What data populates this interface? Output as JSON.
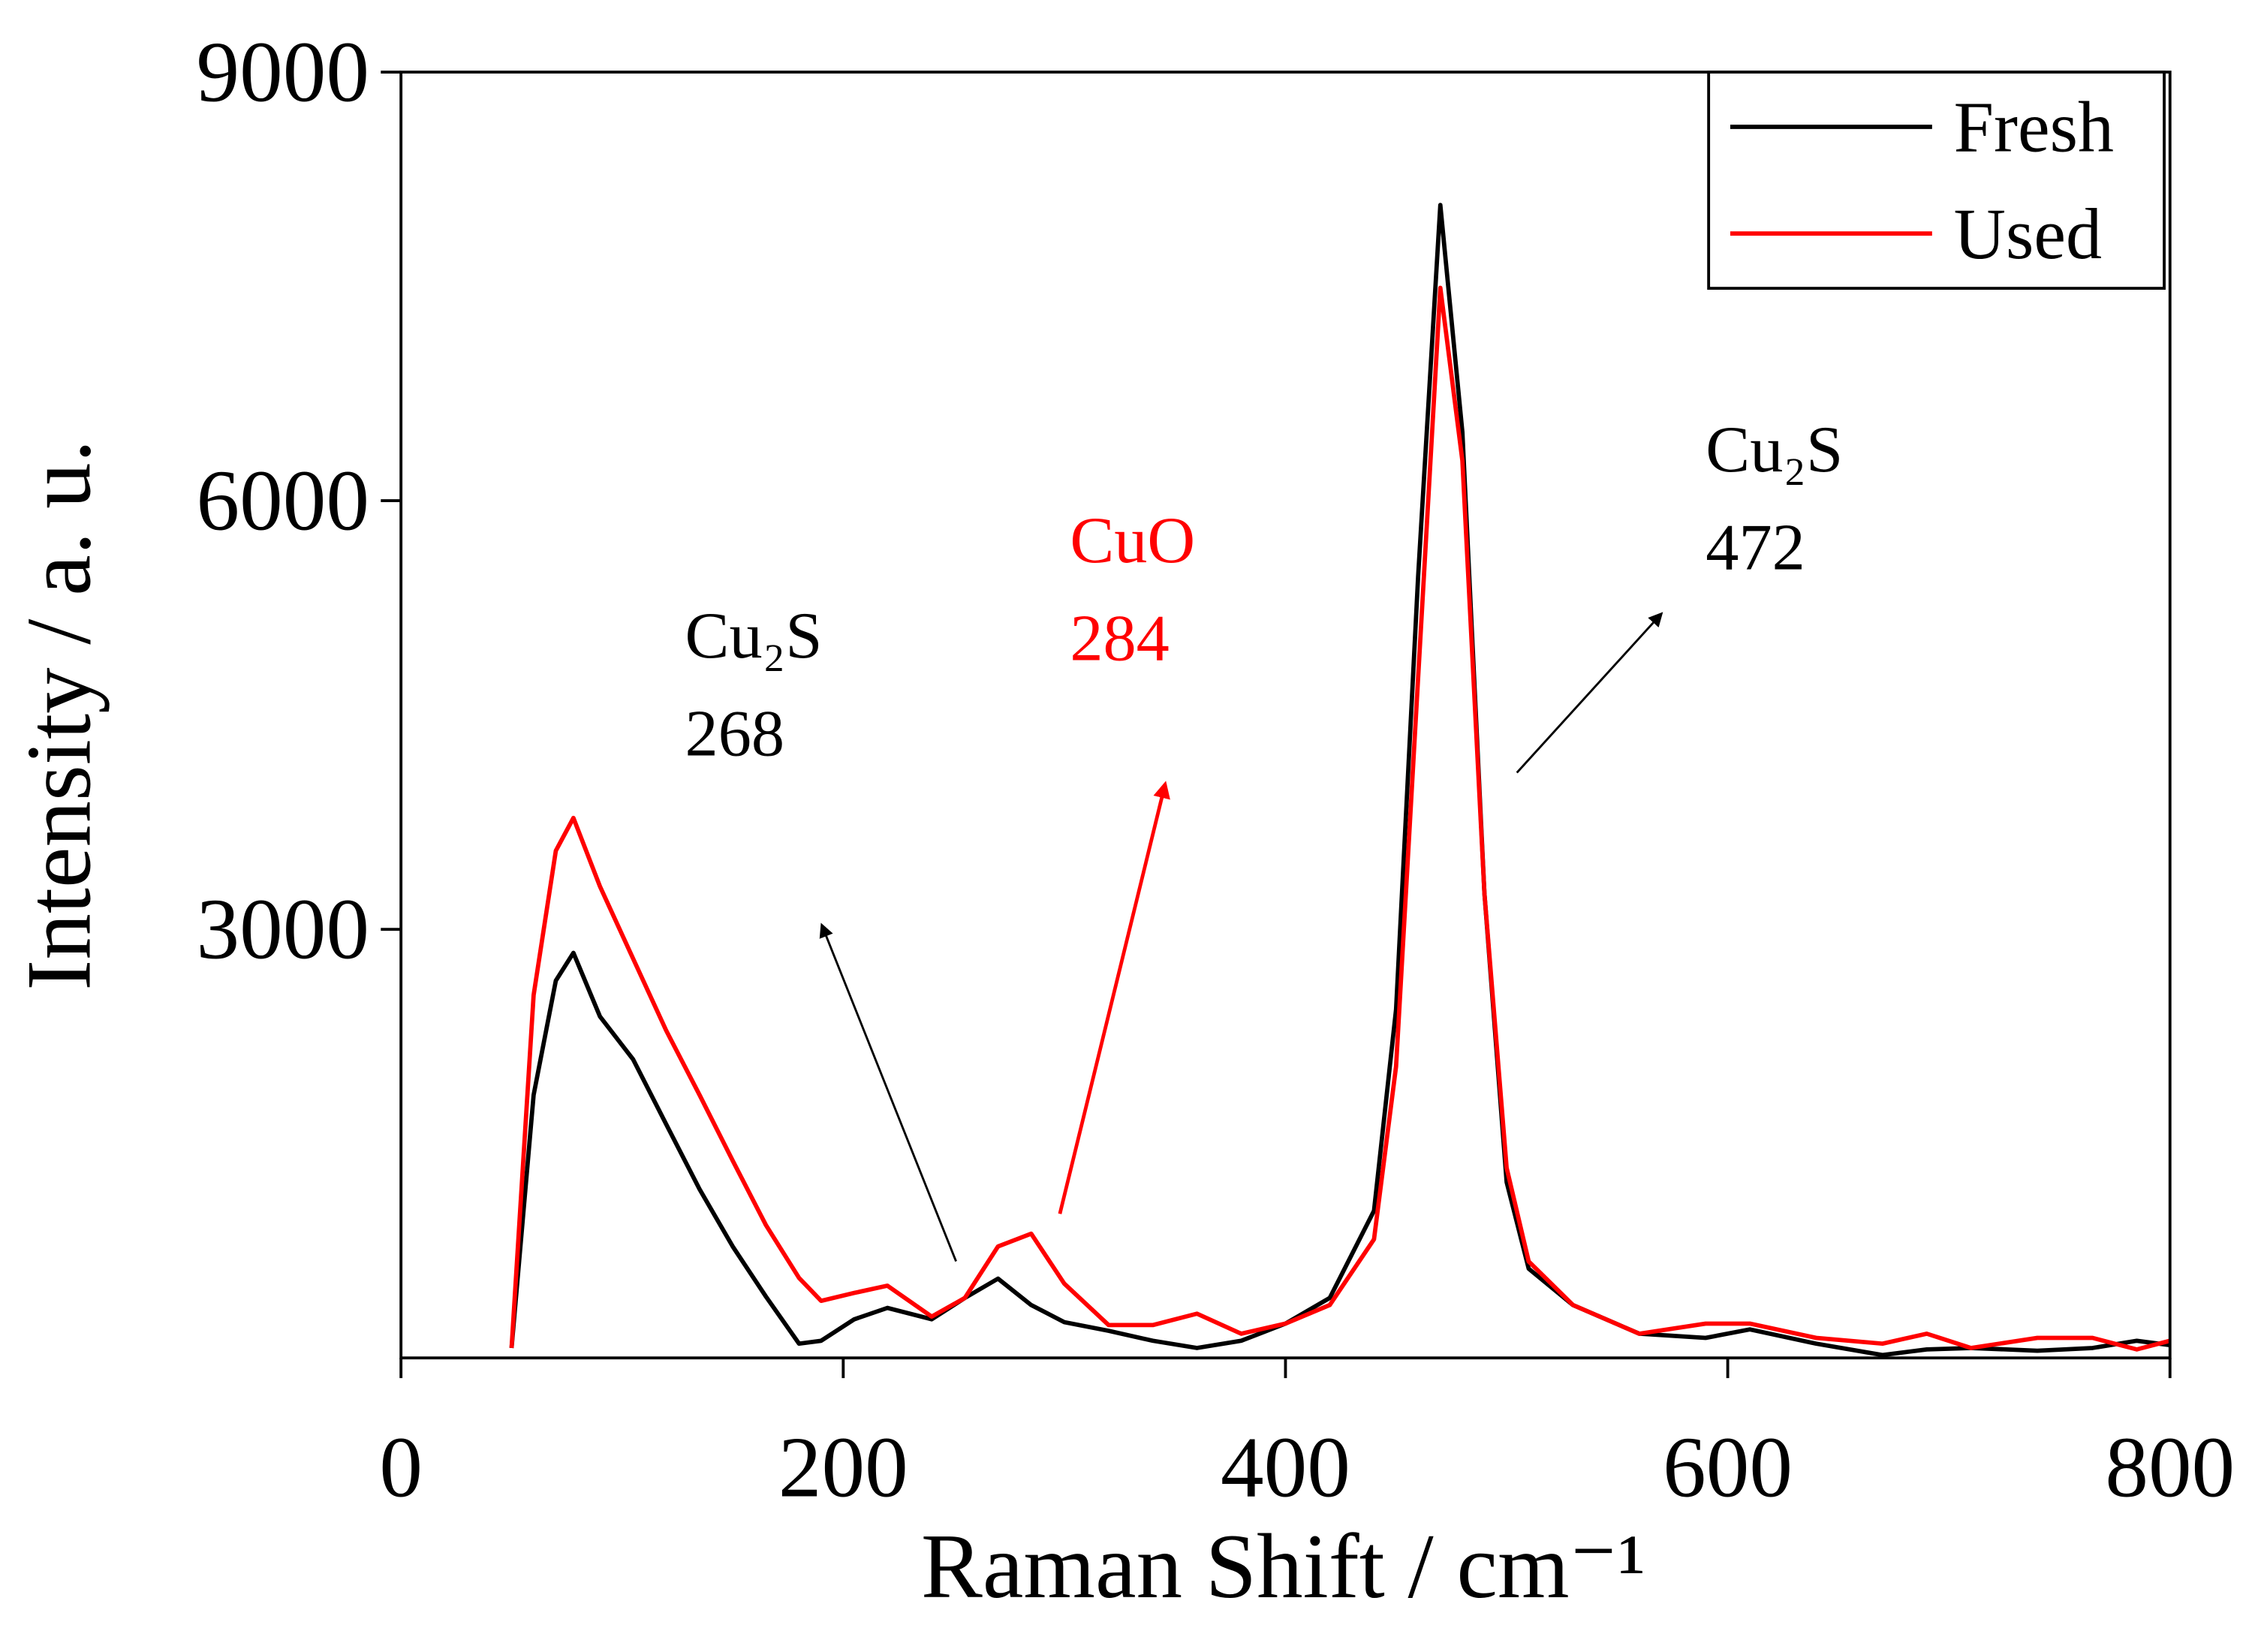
{
  "chart_data": {
    "type": "line",
    "x_label": "Raman Shift / cm⁻¹",
    "y_label": "Intensity / a. u.",
    "x": [
      50,
      60,
      70,
      78,
      90,
      105,
      120,
      135,
      150,
      165,
      180,
      190,
      205,
      220,
      240,
      255,
      270,
      285,
      300,
      320,
      340,
      360,
      380,
      400,
      420,
      440,
      450,
      460,
      470,
      480,
      490,
      500,
      510,
      530,
      560,
      590,
      610,
      640,
      670,
      690,
      710,
      740,
      765,
      785,
      800
    ],
    "series": [
      {
        "name": "Fresh",
        "color": "#000000",
        "values": [
          70,
          1840,
          2640,
          2835,
          2390,
          2090,
          1635,
          1180,
          780,
          430,
          100,
          120,
          270,
          350,
          270,
          420,
          555,
          370,
          250,
          190,
          120,
          70,
          120,
          240,
          420,
          1030,
          2440,
          5470,
          8070,
          6480,
          3250,
          1230,
          625,
          370,
          170,
          140,
          200,
          100,
          20,
          60,
          70,
          50,
          70,
          120,
          90
        ]
      },
      {
        "name": "Used",
        "color": "#ff0000",
        "values": [
          70,
          2540,
          3550,
          3780,
          3300,
          2795,
          2290,
          1840,
          1380,
          930,
          560,
          400,
          455,
          505,
          290,
          420,
          780,
          870,
          520,
          230,
          230,
          310,
          170,
          240,
          370,
          830,
          2040,
          4760,
          7490,
          6280,
          3250,
          1330,
          675,
          370,
          170,
          240,
          240,
          140,
          100,
          170,
          70,
          140,
          140,
          60,
          120
        ]
      }
    ],
    "xlim": [
      0,
      800
    ],
    "xticks": [
      0,
      200,
      400,
      600,
      800
    ],
    "ylim": [
      0,
      9000
    ],
    "yticks": [
      3000,
      6000,
      9000
    ],
    "legend": "upper right",
    "annotations": [
      {
        "text": "Cu₂S",
        "peak": "268",
        "color": "#000000"
      },
      {
        "text": "CuO",
        "peak": "284",
        "color": "#ff0000"
      },
      {
        "text": "Cu₂S",
        "peak": "472",
        "color": "#000000"
      }
    ]
  }
}
